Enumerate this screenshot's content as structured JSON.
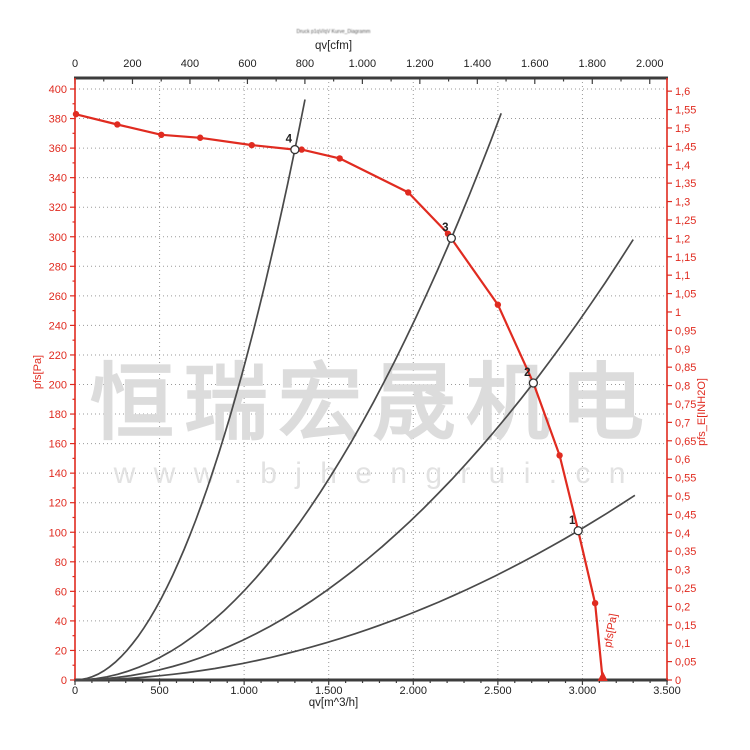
{
  "page": {
    "header_note": "Druck p1qV/qV Kurve_Diagramm",
    "watermark": {
      "line1": "恒瑞宏晟机电",
      "line2": "w w w . b j h e n g r u i . c n",
      "color_line1": "#dcdcdc",
      "color_line2": "#e2e2e2"
    }
  },
  "colors": {
    "accent_red": "#e02b20",
    "curve_black": "#4a4a4a",
    "grid_gray": "#9a9a9a",
    "axis_dark": "#3c3c3c",
    "tick_text_dark": "#222222"
  },
  "chart_data": {
    "type": "line",
    "axes": {
      "bottom": {
        "label": "qv[m^3/h]",
        "min": 0,
        "max": 3500,
        "major": 500,
        "minor": 100,
        "tick_labels": [
          "0",
          "500",
          "1.000",
          "1.500",
          "2.000",
          "2.500",
          "3.000",
          "3.500"
        ]
      },
      "top": {
        "label": "qv[cfm]",
        "min": 0,
        "max": 2000,
        "major": 200,
        "minor": 100,
        "m3h_per_cfm": 1.699,
        "tick_labels": [
          "0",
          "200",
          "400",
          "600",
          "800",
          "1.000",
          "1.200",
          "1.400",
          "1.600",
          "1.800",
          "2.000"
        ]
      },
      "left": {
        "label": "pfs[Pa]",
        "min": 0,
        "max": 400,
        "major": 20,
        "minor": 10
      },
      "right": {
        "label": "pfs_E[INH2O]",
        "min": 0,
        "max": 1.6,
        "major": 0.05,
        "pa_per_inh2o": 249.089,
        "decimal_separator": ","
      },
      "grid": "dotted"
    },
    "fan_curve": {
      "name": "pfs[Pa]",
      "curve_label": "pfs[Pa]",
      "color": "#e02b20",
      "points": [
        [
          0,
          383
        ],
        [
          250,
          376
        ],
        [
          510,
          369
        ],
        [
          740,
          367
        ],
        [
          1045,
          362
        ],
        [
          1300,
          359
        ],
        [
          1340,
          359
        ],
        [
          1565,
          353
        ],
        [
          1970,
          330
        ],
        [
          2205,
          302
        ],
        [
          2500,
          254
        ],
        [
          2710,
          201
        ],
        [
          2865,
          152
        ],
        [
          2975,
          101
        ],
        [
          3075,
          52
        ],
        [
          3120,
          0
        ]
      ],
      "dot_markers": [
        [
          250,
          376
        ],
        [
          510,
          369
        ],
        [
          740,
          367
        ],
        [
          1045,
          362
        ],
        [
          1340,
          359
        ],
        [
          1565,
          353
        ],
        [
          1970,
          330
        ],
        [
          2205,
          302
        ],
        [
          2500,
          254
        ],
        [
          2865,
          152
        ],
        [
          3075,
          52
        ]
      ],
      "start_marker": [
        0,
        383
      ],
      "end_marker": [
        3120,
        0
      ]
    },
    "operating_points": [
      {
        "label": "1",
        "q": 2975,
        "p": 101
      },
      {
        "label": "2",
        "q": 2710,
        "p": 201
      },
      {
        "label": "3",
        "q": 2225,
        "p": 299
      },
      {
        "label": "4",
        "q": 1300,
        "p": 359
      }
    ],
    "system_curves": [
      {
        "label": "1",
        "through_q": 2975,
        "through_p": 101,
        "q_end": 3310
      },
      {
        "label": "2",
        "through_q": 2710,
        "through_p": 201,
        "q_end": 3300
      },
      {
        "label": "3",
        "through_q": 2225,
        "through_p": 299,
        "q_end": 2520
      },
      {
        "label": "4",
        "through_q": 1300,
        "through_p": 359,
        "q_end": 1360
      }
    ]
  }
}
